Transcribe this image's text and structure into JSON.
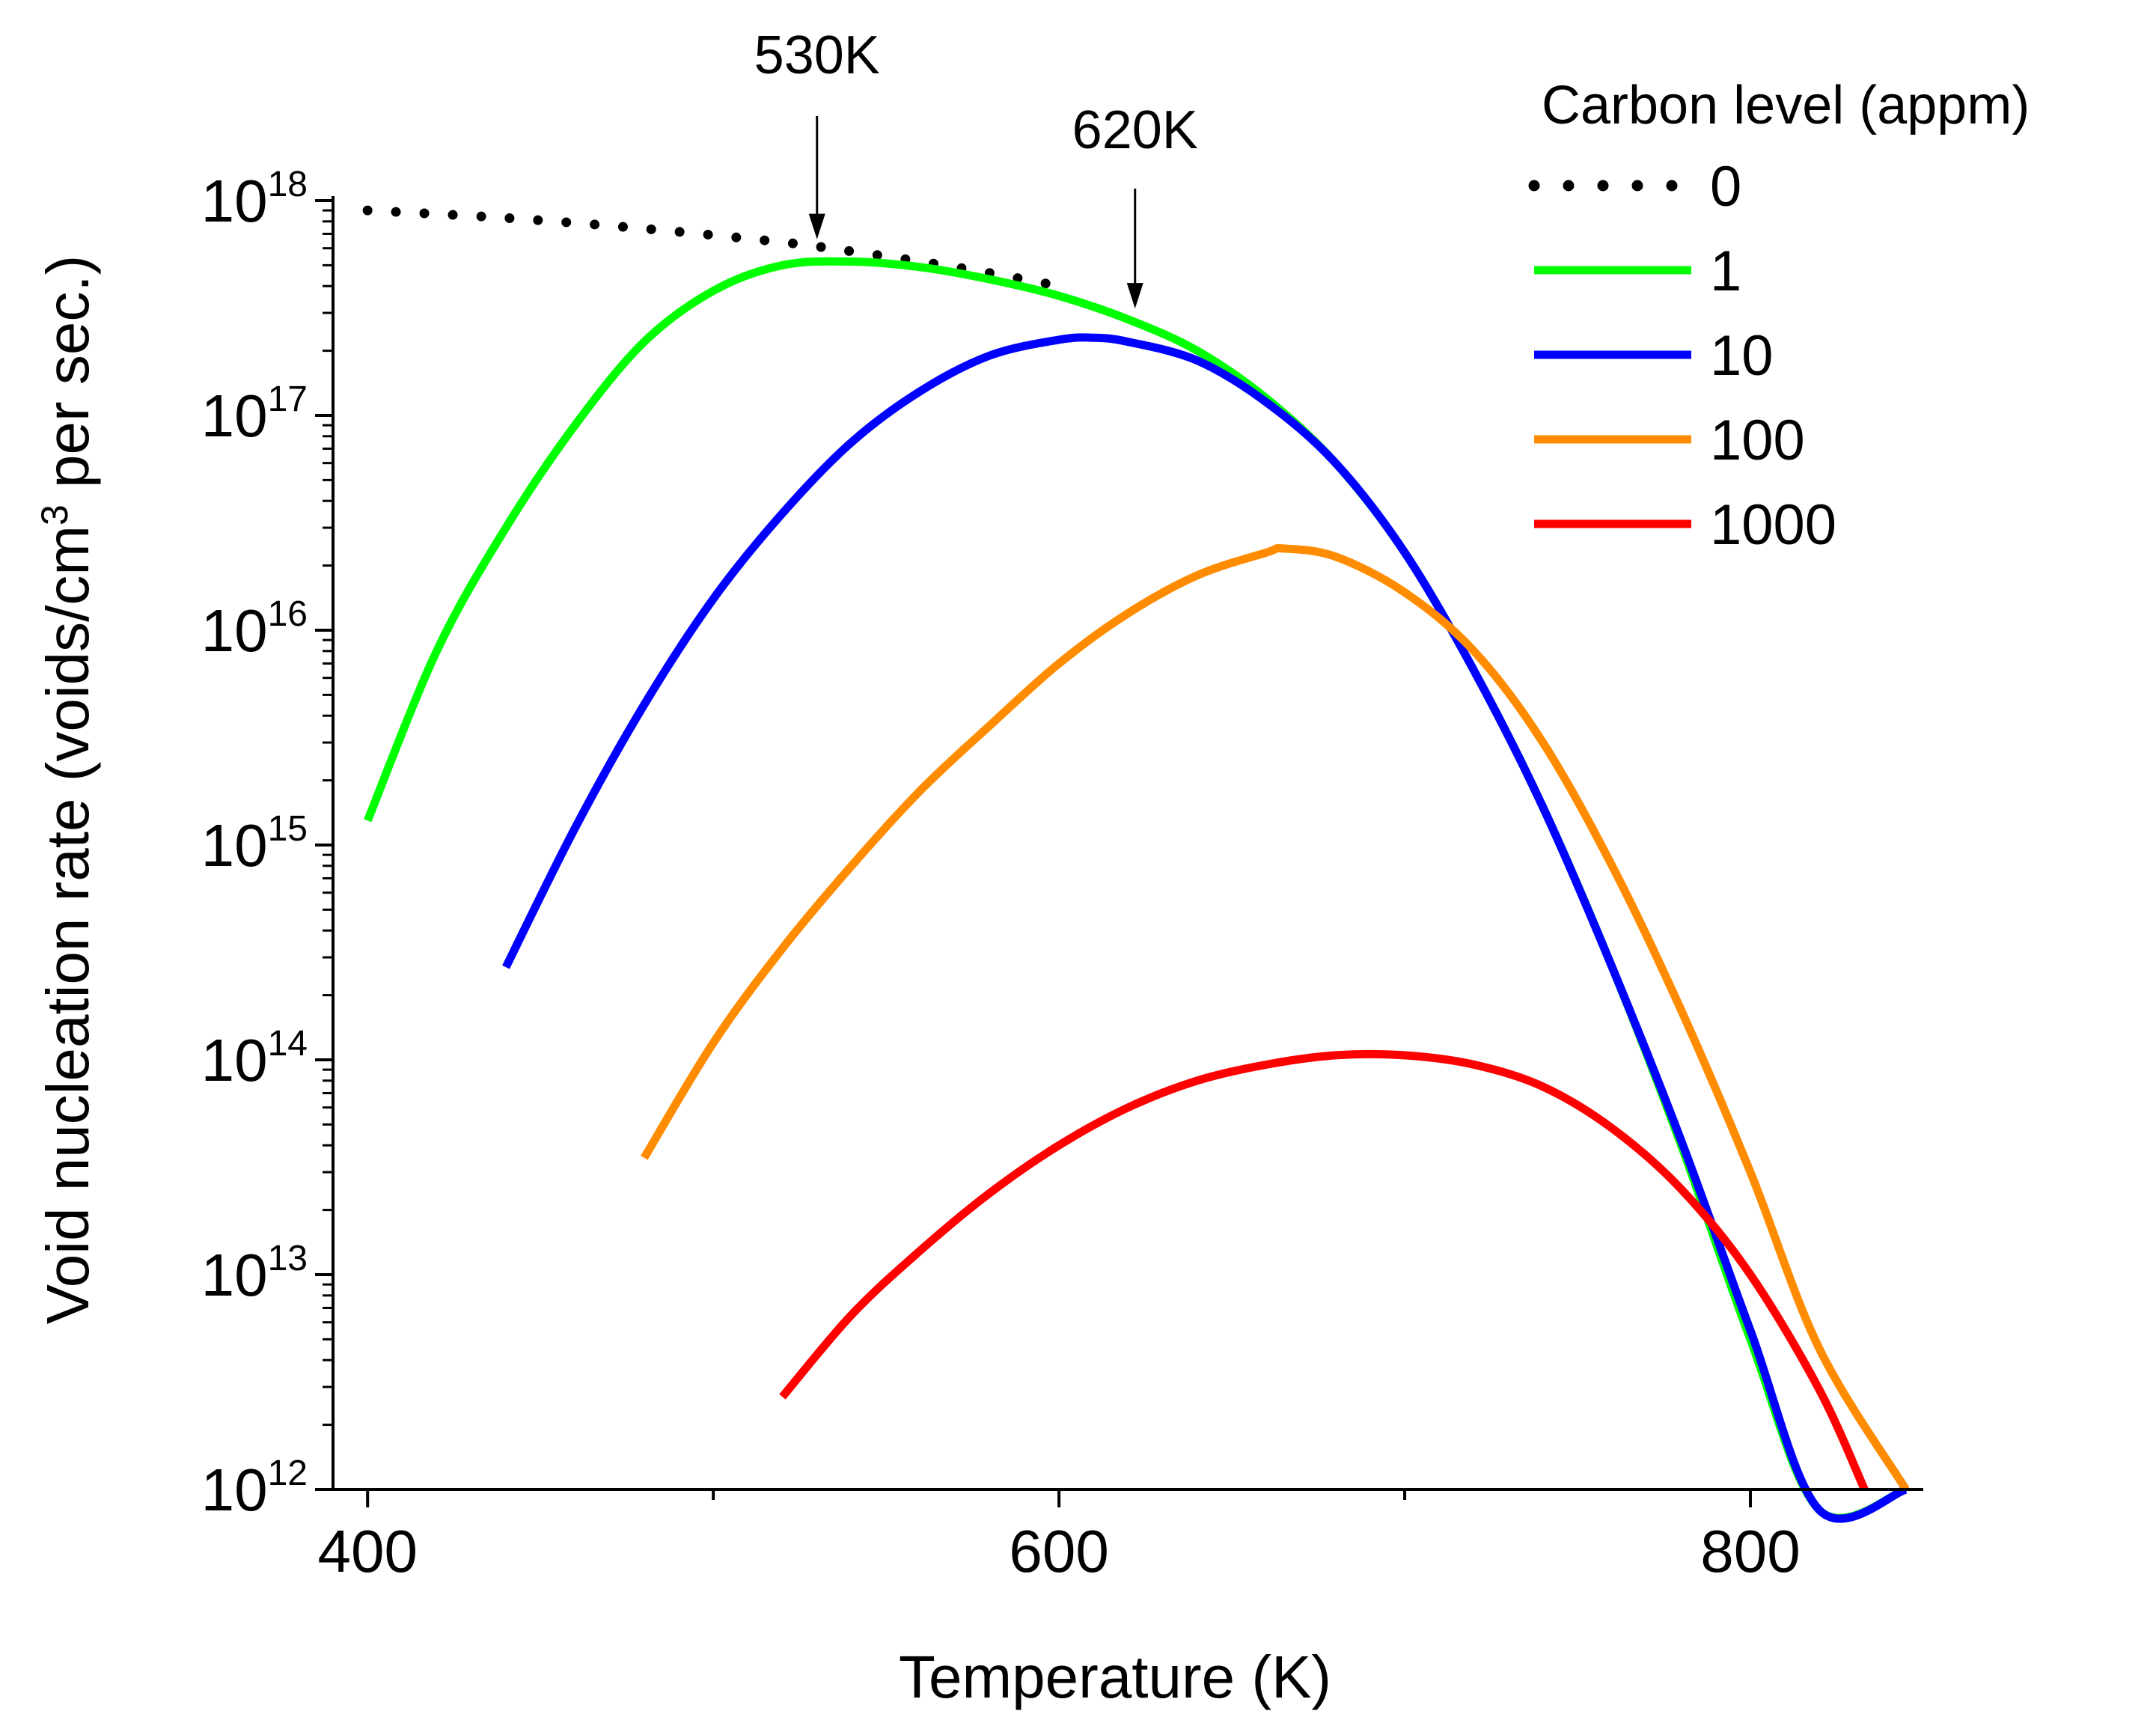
{
  "chart_data": {
    "type": "line",
    "title": "",
    "xlabel": "Temperature (K)",
    "ylabel": "Void nucleation rate (voids/cm3 per sec.)",
    "ylabel_parts": {
      "pre": "Void nucleation rate (voids/cm",
      "sup": "3",
      "post": " per sec.)"
    },
    "xscale": "linear",
    "yscale": "log",
    "xlim": [
      390,
      850
    ],
    "ylim": [
      1000000000000.0,
      1e+18
    ],
    "x_ticks": [
      400,
      600,
      800
    ],
    "x_tick_labels": [
      "400",
      "600",
      "800"
    ],
    "x_minor_ticks": [
      500,
      700
    ],
    "y_ticks": [
      {
        "base": "10",
        "exp": "12",
        "value": 1000000000000.0
      },
      {
        "base": "10",
        "exp": "13",
        "value": 10000000000000.0
      },
      {
        "base": "10",
        "exp": "14",
        "value": 100000000000000.0
      },
      {
        "base": "10",
        "exp": "15",
        "value": 1000000000000000.0
      },
      {
        "base": "10",
        "exp": "16",
        "value": 1e+16
      },
      {
        "base": "10",
        "exp": "17",
        "value": 1e+17
      },
      {
        "base": "10",
        "exp": "18",
        "value": 1e+18
      }
    ],
    "legend": {
      "title": "Carbon level (appm)",
      "position": "top-right"
    },
    "series": [
      {
        "name": "0",
        "color": "#000000",
        "style": "dotted",
        "x": [
          400,
          440,
          480,
          520,
          540,
          560,
          580,
          600
        ],
        "y": [
          9e+17,
          8.3e+17,
          7.4e+17,
          6.4e+17,
          5.8e+17,
          5.2e+17,
          4.6e+17,
          4e+17
        ]
      },
      {
        "name": "1",
        "color": "#00ff00",
        "style": "solid",
        "x": [
          400,
          420,
          440,
          460,
          480,
          500,
          520,
          540,
          560,
          580,
          600,
          620,
          640,
          660,
          680,
          700,
          720,
          740,
          760,
          780,
          800,
          820,
          845
        ],
        "y": [
          1300000000000000.0,
          8000000000000000.0,
          3e+16,
          9e+16,
          2.2e+17,
          3.8e+17,
          5e+17,
          5.2e+17,
          4.9e+17,
          4.3e+17,
          3.6e+17,
          2.8e+17,
          2e+17,
          1.2e+17,
          6e+16,
          2.3e+16,
          6500000000000000.0,
          1500000000000000.0,
          270000000000000.0,
          40000000000000.0,
          5000000000000.0,
          800000000000.0,
          1000000000000.0
        ]
      },
      {
        "name": "10",
        "color": "#0000ff",
        "style": "solid",
        "x": [
          440,
          460,
          480,
          500,
          520,
          540,
          560,
          580,
          600,
          610,
          620,
          640,
          660,
          680,
          700,
          720,
          740,
          760,
          780,
          800,
          820,
          845
        ],
        "y": [
          270000000000000.0,
          1200000000000000.0,
          4500000000000000.0,
          1.4e+16,
          3.5e+16,
          7.5e+16,
          1.3e+17,
          1.9e+17,
          2.25e+17,
          2.3e+17,
          2.2e+17,
          1.8e+17,
          1.15e+17,
          6e+16,
          2.3e+16,
          6500000000000000.0,
          1500000000000000.0,
          270000000000000.0,
          42000000000000.0,
          5500000000000.0,
          800000000000.0,
          1000000000000.0
        ]
      },
      {
        "name": "100",
        "color": "#ff8c00",
        "style": "solid",
        "x": [
          480,
          500,
          520,
          540,
          560,
          580,
          600,
          620,
          640,
          660,
          665,
          680,
          700,
          720,
          740,
          760,
          780,
          800,
          820,
          845
        ],
        "y": [
          35000000000000.0,
          120000000000000.0,
          330000000000000.0,
          800000000000000.0,
          1800000000000000.0,
          3600000000000000.0,
          7000000000000000.0,
          1.2e+16,
          1.8e+16,
          2.3e+16,
          2.4e+16,
          2.2e+16,
          1.5e+16,
          8000000000000000.0,
          3000000000000000.0,
          800000000000000.0,
          170000000000000.0,
          30000000000000.0,
          4500000000000.0,
          1000000000000.0
        ]
      },
      {
        "name": "1000",
        "color": "#ff0000",
        "style": "solid",
        "x": [
          520,
          540,
          560,
          580,
          600,
          620,
          640,
          660,
          680,
          700,
          720,
          740,
          760,
          780,
          800,
          820,
          833
        ],
        "y": [
          2700000000000.0,
          6500000000000.0,
          13000000000000.0,
          24000000000000.0,
          40000000000000.0,
          60000000000000.0,
          80000000000000.0,
          95000000000000.0,
          105000000000000.0,
          105000000000000.0,
          95000000000000.0,
          75000000000000.0,
          48000000000000.0,
          25000000000000.0,
          10000000000000.0,
          2900000000000.0,
          1000000000000.0
        ]
      }
    ],
    "annotations": [
      {
        "text": "530K",
        "x": 530,
        "y_tip": 6.3e+17
      },
      {
        "text": "620K",
        "x": 622,
        "y_tip": 3e+17
      }
    ]
  }
}
